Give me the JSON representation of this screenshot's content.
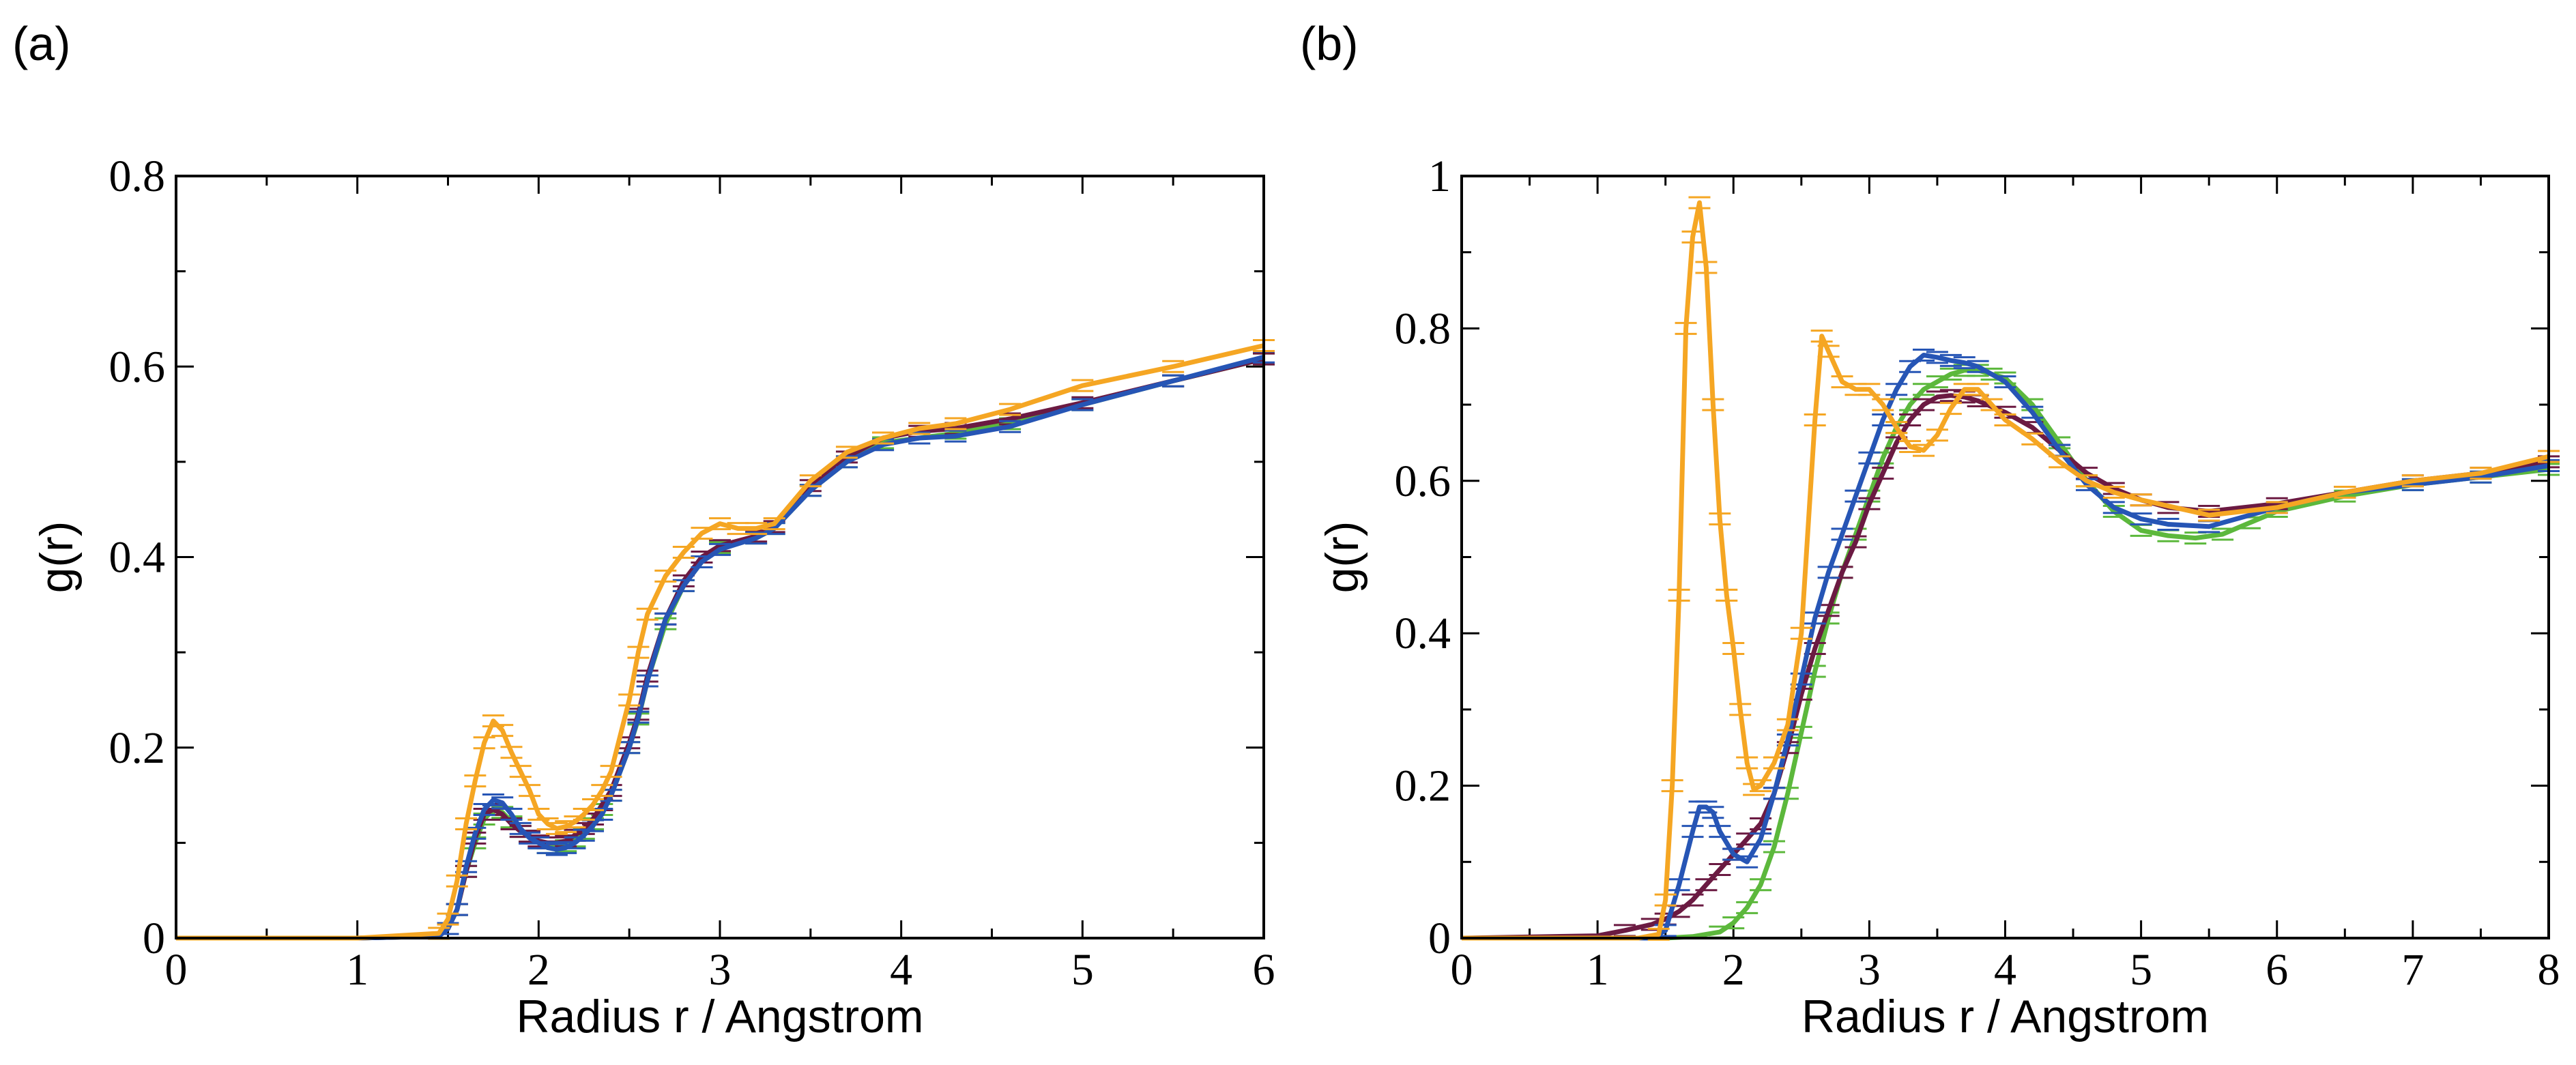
{
  "colors": {
    "orange": "#f5a623",
    "blue": "#2655b5",
    "maroon": "#6b1a42",
    "green": "#5cb83c"
  },
  "chart_data": [
    {
      "type": "line",
      "panel_label": "(a)",
      "xlabel": "Radius  r / Angstrom",
      "ylabel": "g(r)",
      "xlim": [
        0,
        6
      ],
      "ylim": [
        0,
        0.8
      ],
      "xticks": [
        0,
        1,
        2,
        3,
        4,
        5,
        6
      ],
      "yticks": [
        0,
        0.2,
        0.4,
        0.6,
        0.8
      ],
      "xtick_labels": [
        "0",
        "1",
        "2",
        "3",
        "4",
        "5",
        "6"
      ],
      "ytick_labels": [
        "0",
        "0.2",
        "0.4",
        "0.6",
        "0.8"
      ],
      "series": [
        {
          "color_key": "green",
          "error_bars": true,
          "x": [
            0,
            1.0,
            1.45,
            1.5,
            1.55,
            1.6,
            1.65,
            1.7,
            1.75,
            1.8,
            1.85,
            1.9,
            1.95,
            2.0,
            2.05,
            2.1,
            2.15,
            2.2,
            2.25,
            2.3,
            2.35,
            2.4,
            2.5,
            2.55,
            2.6,
            2.7,
            2.8,
            2.9,
            3.0,
            3.2,
            3.3,
            3.5,
            3.7,
            3.9,
            4.1,
            4.3,
            4.6,
            5.0,
            5.5,
            6.0
          ],
          "y": [
            0,
            0,
            0.002,
            0.01,
            0.03,
            0.07,
            0.1,
            0.125,
            0.135,
            0.132,
            0.122,
            0.112,
            0.107,
            0.1,
            0.095,
            0.095,
            0.097,
            0.102,
            0.11,
            0.12,
            0.135,
            0.15,
            0.2,
            0.23,
            0.27,
            0.33,
            0.37,
            0.395,
            0.41,
            0.42,
            0.43,
            0.47,
            0.5,
            0.52,
            0.525,
            0.53,
            0.54,
            0.56,
            0.585,
            0.608
          ]
        },
        {
          "color_key": "maroon",
          "error_bars": true,
          "x": [
            0,
            1.0,
            1.45,
            1.5,
            1.55,
            1.6,
            1.65,
            1.7,
            1.75,
            1.8,
            1.85,
            1.9,
            1.95,
            2.0,
            2.05,
            2.1,
            2.15,
            2.2,
            2.25,
            2.3,
            2.35,
            2.4,
            2.5,
            2.55,
            2.6,
            2.7,
            2.8,
            2.9,
            3.0,
            3.2,
            3.3,
            3.5,
            3.7,
            3.9,
            4.1,
            4.3,
            4.6,
            5.0,
            5.5,
            6.0
          ],
          "y": [
            0,
            0,
            0.002,
            0.01,
            0.03,
            0.07,
            0.105,
            0.13,
            0.135,
            0.13,
            0.12,
            0.112,
            0.107,
            0.102,
            0.1,
            0.1,
            0.102,
            0.108,
            0.115,
            0.125,
            0.14,
            0.155,
            0.205,
            0.235,
            0.275,
            0.335,
            0.375,
            0.4,
            0.412,
            0.422,
            0.432,
            0.475,
            0.505,
            0.525,
            0.532,
            0.535,
            0.545,
            0.562,
            0.585,
            0.608
          ]
        },
        {
          "color_key": "blue",
          "error_bars": true,
          "x": [
            0,
            1.0,
            1.45,
            1.5,
            1.55,
            1.6,
            1.65,
            1.7,
            1.75,
            1.8,
            1.85,
            1.9,
            1.95,
            2.0,
            2.05,
            2.1,
            2.15,
            2.2,
            2.25,
            2.3,
            2.35,
            2.4,
            2.5,
            2.55,
            2.6,
            2.7,
            2.8,
            2.9,
            3.0,
            3.2,
            3.3,
            3.5,
            3.7,
            3.9,
            4.1,
            4.3,
            4.6,
            5.0,
            5.5,
            6.0
          ],
          "y": [
            0,
            0,
            0.002,
            0.01,
            0.03,
            0.075,
            0.11,
            0.135,
            0.145,
            0.142,
            0.13,
            0.115,
            0.105,
            0.1,
            0.095,
            0.093,
            0.095,
            0.1,
            0.108,
            0.118,
            0.13,
            0.15,
            0.2,
            0.232,
            0.27,
            0.335,
            0.37,
            0.395,
            0.408,
            0.42,
            0.43,
            0.47,
            0.5,
            0.518,
            0.525,
            0.527,
            0.537,
            0.56,
            0.585,
            0.61
          ]
        },
        {
          "color_key": "orange",
          "error_bars": true,
          "x": [
            0,
            1.0,
            1.45,
            1.5,
            1.55,
            1.6,
            1.65,
            1.7,
            1.75,
            1.8,
            1.85,
            1.9,
            1.95,
            2.0,
            2.05,
            2.1,
            2.15,
            2.2,
            2.25,
            2.3,
            2.35,
            2.4,
            2.5,
            2.55,
            2.6,
            2.7,
            2.8,
            2.9,
            3.0,
            3.1,
            3.2,
            3.3,
            3.5,
            3.7,
            3.9,
            4.1,
            4.3,
            4.6,
            5.0,
            5.5,
            6.0
          ],
          "y": [
            0,
            0,
            0.005,
            0.02,
            0.06,
            0.12,
            0.165,
            0.205,
            0.228,
            0.218,
            0.195,
            0.175,
            0.155,
            0.13,
            0.12,
            0.115,
            0.117,
            0.122,
            0.13,
            0.14,
            0.155,
            0.175,
            0.25,
            0.3,
            0.34,
            0.38,
            0.405,
            0.425,
            0.435,
            0.43,
            0.43,
            0.435,
            0.48,
            0.51,
            0.525,
            0.535,
            0.54,
            0.555,
            0.58,
            0.6,
            0.622
          ]
        }
      ]
    },
    {
      "type": "line",
      "panel_label": "(b)",
      "xlabel": "Radius  r / Angstrom",
      "ylabel": "g(r)",
      "xlim": [
        0,
        8
      ],
      "ylim": [
        0,
        1
      ],
      "xticks": [
        0,
        1,
        2,
        3,
        4,
        5,
        6,
        7,
        8
      ],
      "yticks": [
        0,
        0.2,
        0.4,
        0.6,
        0.8,
        1
      ],
      "xtick_labels": [
        "0",
        "1",
        "2",
        "3",
        "4",
        "5",
        "6",
        "7",
        "8"
      ],
      "ytick_labels": [
        "0",
        "0.2",
        "0.4",
        "0.6",
        "0.8",
        "1"
      ],
      "series": [
        {
          "color_key": "green",
          "error_bars": true,
          "x": [
            0,
            1.5,
            1.7,
            1.9,
            2.0,
            2.1,
            2.2,
            2.3,
            2.4,
            2.5,
            2.6,
            2.7,
            2.8,
            2.9,
            3.0,
            3.1,
            3.2,
            3.3,
            3.4,
            3.5,
            3.6,
            3.7,
            3.8,
            3.9,
            4.0,
            4.2,
            4.4,
            4.6,
            4.8,
            5.0,
            5.2,
            5.4,
            5.6,
            5.8,
            6.0,
            6.5,
            7.0,
            7.5,
            8.0
          ],
          "y": [
            0,
            0,
            0.002,
            0.008,
            0.02,
            0.04,
            0.07,
            0.12,
            0.19,
            0.27,
            0.35,
            0.42,
            0.48,
            0.53,
            0.58,
            0.63,
            0.67,
            0.7,
            0.72,
            0.73,
            0.74,
            0.745,
            0.745,
            0.74,
            0.735,
            0.7,
            0.65,
            0.6,
            0.56,
            0.535,
            0.528,
            0.525,
            0.53,
            0.545,
            0.56,
            0.58,
            0.595,
            0.605,
            0.615
          ]
        },
        {
          "color_key": "maroon",
          "error_bars": true,
          "x": [
            0,
            1.0,
            1.2,
            1.4,
            1.5,
            1.6,
            1.7,
            1.8,
            1.9,
            2.0,
            2.1,
            2.2,
            2.3,
            2.4,
            2.5,
            2.6,
            2.7,
            2.8,
            2.9,
            3.0,
            3.1,
            3.2,
            3.3,
            3.4,
            3.5,
            3.6,
            3.7,
            3.8,
            4.0,
            4.2,
            4.4,
            4.6,
            4.8,
            5.0,
            5.2,
            5.5,
            6.0,
            6.5,
            7.0,
            7.5,
            8.0
          ],
          "y": [
            0,
            0.003,
            0.01,
            0.018,
            0.025,
            0.035,
            0.05,
            0.07,
            0.09,
            0.11,
            0.13,
            0.15,
            0.19,
            0.25,
            0.32,
            0.38,
            0.43,
            0.48,
            0.52,
            0.57,
            0.61,
            0.65,
            0.68,
            0.7,
            0.71,
            0.712,
            0.71,
            0.705,
            0.69,
            0.67,
            0.64,
            0.61,
            0.59,
            0.575,
            0.565,
            0.56,
            0.57,
            0.585,
            0.6,
            0.61,
            0.625
          ]
        },
        {
          "color_key": "blue",
          "error_bars": true,
          "x": [
            0,
            1.4,
            1.5,
            1.6,
            1.7,
            1.75,
            1.8,
            1.85,
            1.9,
            2.0,
            2.1,
            2.2,
            2.3,
            2.4,
            2.5,
            2.6,
            2.7,
            2.8,
            2.9,
            3.0,
            3.1,
            3.2,
            3.3,
            3.4,
            3.5,
            3.6,
            3.7,
            3.8,
            4.0,
            4.2,
            4.4,
            4.6,
            4.8,
            5.0,
            5.2,
            5.5,
            6.0,
            6.5,
            7.0,
            7.5,
            8.0
          ],
          "y": [
            0,
            0,
            0.01,
            0.07,
            0.14,
            0.172,
            0.172,
            0.165,
            0.14,
            0.11,
            0.1,
            0.13,
            0.19,
            0.26,
            0.34,
            0.42,
            0.48,
            0.53,
            0.58,
            0.63,
            0.68,
            0.72,
            0.75,
            0.765,
            0.762,
            0.758,
            0.755,
            0.75,
            0.73,
            0.69,
            0.64,
            0.595,
            0.565,
            0.55,
            0.543,
            0.54,
            0.565,
            0.585,
            0.595,
            0.605,
            0.62
          ]
        },
        {
          "color_key": "orange",
          "error_bars": true,
          "x": [
            0,
            1.3,
            1.45,
            1.5,
            1.55,
            1.6,
            1.65,
            1.7,
            1.75,
            1.8,
            1.85,
            1.9,
            1.95,
            2.0,
            2.05,
            2.1,
            2.15,
            2.2,
            2.3,
            2.4,
            2.5,
            2.6,
            2.65,
            2.7,
            2.8,
            2.9,
            3.0,
            3.1,
            3.2,
            3.3,
            3.4,
            3.5,
            3.6,
            3.7,
            3.8,
            3.9,
            4.0,
            4.2,
            4.4,
            4.6,
            4.8,
            5.0,
            5.5,
            6.0,
            6.5,
            7.0,
            7.5,
            8.0
          ],
          "y": [
            0,
            0,
            0.005,
            0.05,
            0.2,
            0.45,
            0.8,
            0.92,
            0.965,
            0.88,
            0.7,
            0.55,
            0.45,
            0.38,
            0.3,
            0.23,
            0.195,
            0.2,
            0.23,
            0.28,
            0.4,
            0.68,
            0.79,
            0.77,
            0.73,
            0.72,
            0.72,
            0.7,
            0.67,
            0.645,
            0.64,
            0.66,
            0.695,
            0.72,
            0.72,
            0.7,
            0.68,
            0.655,
            0.625,
            0.6,
            0.585,
            0.575,
            0.555,
            0.565,
            0.585,
            0.6,
            0.61,
            0.632
          ]
        }
      ]
    }
  ]
}
